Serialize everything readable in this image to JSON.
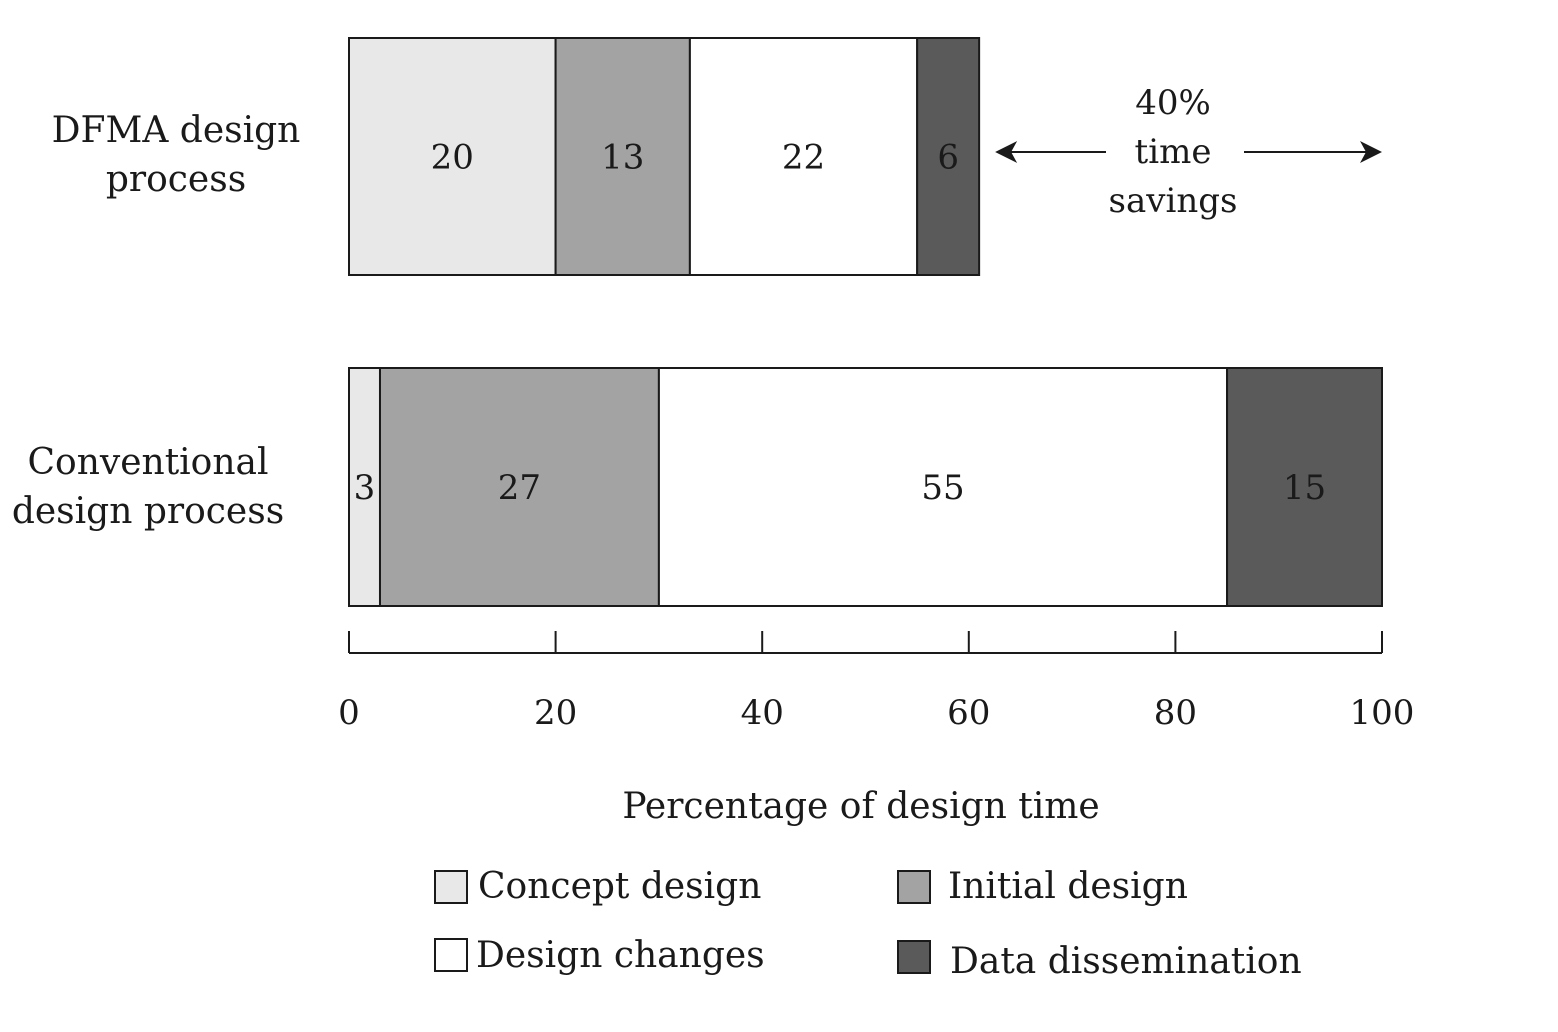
{
  "chart_data": {
    "type": "bar",
    "orientation": "horizontal",
    "stacked": true,
    "categories": [
      "DFMA design process",
      "Conventional design process"
    ],
    "category_lines": [
      [
        "DFMA design",
        "process"
      ],
      [
        "Conventional",
        "design process"
      ]
    ],
    "series": [
      {
        "name": "Concept design",
        "values": [
          20,
          3
        ],
        "color": "#e8e8e8"
      },
      {
        "name": "Initial design",
        "values": [
          13,
          27
        ],
        "color": "#a3a3a3"
      },
      {
        "name": "Design changes",
        "values": [
          22,
          55
        ],
        "color": "#ffffff"
      },
      {
        "name": "Data dissemination",
        "values": [
          6,
          15
        ],
        "color": "#5a5a5a"
      }
    ],
    "xlabel": "Percentage of design time",
    "xlim": [
      0,
      100
    ],
    "xticks": [
      0,
      20,
      40,
      60,
      80,
      100
    ],
    "grid": false,
    "legend_placement": "bottom",
    "annotation": {
      "lines": [
        "40%",
        "time",
        "savings"
      ]
    }
  }
}
